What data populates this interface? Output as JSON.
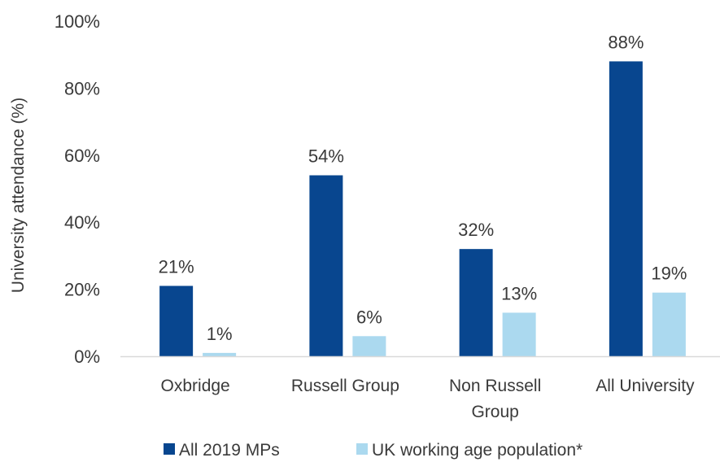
{
  "chart_data": {
    "type": "bar",
    "categories": [
      "Oxbridge",
      "Russell Group",
      "Non Russell Group",
      "All University"
    ],
    "category_lines": [
      [
        "Oxbridge"
      ],
      [
        "Russell Group"
      ],
      [
        "Non Russell",
        "Group"
      ],
      [
        "All University"
      ]
    ],
    "series": [
      {
        "name": "All 2019 MPs",
        "values": [
          21,
          54,
          32,
          88
        ],
        "labels": [
          "21%",
          "54%",
          "32%",
          "88%"
        ],
        "color": "#08468f"
      },
      {
        "name": "UK working age population*",
        "values": [
          1,
          6,
          13,
          19
        ],
        "labels": [
          "1%",
          "6%",
          "13%",
          "19%"
        ],
        "color": "#abd9ef"
      }
    ],
    "ylabel": "University attendance (%)",
    "ylim": [
      0,
      100
    ],
    "yticks": [
      0,
      20,
      40,
      60,
      80,
      100
    ],
    "ytick_labels": [
      "0%",
      "20%",
      "40%",
      "60%",
      "80%",
      "100%"
    ],
    "grid": false,
    "legend_position": "bottom",
    "axis_color": "#d9d9d9"
  }
}
